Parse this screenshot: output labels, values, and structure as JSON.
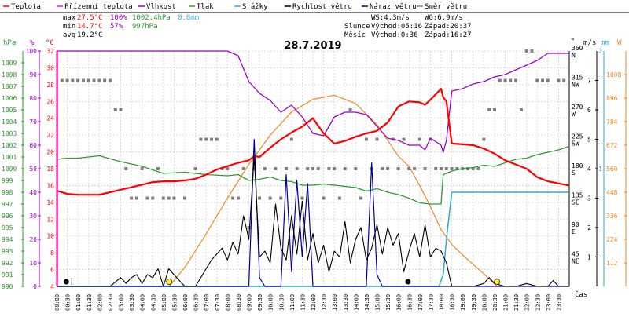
{
  "legend": [
    {
      "label": "Teplota",
      "color": "#ff0000"
    },
    {
      "label": "Přízemní teplota",
      "color": "#ff00ff"
    },
    {
      "label": "Vlhkost",
      "color": "#9900cc"
    },
    {
      "label": "Tlak",
      "color": "#339933"
    },
    {
      "label": "Srážky",
      "color": "#33aacc"
    },
    {
      "label": "Rychlost větru",
      "color": "#000000"
    },
    {
      "label": "Náraz větru",
      "color": "#000099"
    },
    {
      "label": "Směr větru",
      "color": "#808080"
    }
  ],
  "stats": {
    "max_label": "max",
    "max_temp": "27.5°C",
    "max_hum": "100%",
    "max_press": "1002.4hPa",
    "max_rain": "0.8mm",
    "min_label": "min",
    "min_temp": "14.7°C",
    "min_hum": "57%",
    "min_press": "997hPa",
    "avg_label": "avg",
    "avg_temp": "19.2°C"
  },
  "wind_info": {
    "ws": "WS:4.3m/s",
    "wg": "WG:6.9m/s",
    "sun_label": "Slunce",
    "sun_rise": "Východ:05:16",
    "sun_set": "Západ:20:37",
    "moon_label": "Měsíc",
    "moon_rise": "Východ:0:36",
    "moon_set": "Západ:16:27"
  },
  "date": "28.7.2019",
  "time_axis_label": "čas",
  "axis_units": {
    "press": "hPa",
    "hum": "%",
    "temp": "°C",
    "dir": "°",
    "wind": "m/s",
    "rain": "mm",
    "solar": "W"
  },
  "colors": {
    "temp": "#ff0000",
    "ground": "#ff00ff",
    "hum": "#9900cc",
    "press": "#339933",
    "rain": "#33aacc",
    "wind": "#000000",
    "gust": "#000099",
    "dir": "#808080",
    "solar": "#ee8822"
  },
  "chart_data": {
    "type": "line",
    "title": "28.7.2019",
    "xlabel": "čas",
    "x_tick_labels": [
      "00:00",
      "00:30",
      "01:00",
      "01:30",
      "02:00",
      "02:30",
      "03:00",
      "03:30",
      "04:00",
      "04:30",
      "05:00",
      "05:30",
      "06:00",
      "06:30",
      "07:00",
      "07:30",
      "08:00",
      "08:30",
      "09:00",
      "09:30",
      "10:00",
      "10:30",
      "11:00",
      "11:30",
      "12:00",
      "12:30",
      "13:00",
      "13:30",
      "14:00",
      "14:30",
      "15:00",
      "15:30",
      "16:00",
      "16:30",
      "17:00",
      "17:30",
      "18:00",
      "18:30",
      "19:00",
      "19:30",
      "20:00",
      "20:30",
      "21:00",
      "21:30",
      "22:00",
      "22:30",
      "23:00",
      "23:30"
    ],
    "axes": {
      "pressure": {
        "unit": "hPa",
        "range": [
          990,
          1010
        ],
        "ticks": [
          990,
          991,
          992,
          993,
          994,
          995,
          996,
          997,
          998,
          999,
          1000,
          1001,
          1002,
          1003,
          1004,
          1005,
          1006,
          1007,
          1008,
          1009
        ]
      },
      "humidity": {
        "unit": "%",
        "range": [
          0,
          100
        ],
        "ticks": [
          0,
          10,
          20,
          30,
          40,
          50,
          60,
          70,
          80,
          90,
          100
        ]
      },
      "temperature": {
        "unit": "°C",
        "range": [
          4,
          32
        ],
        "ticks": [
          4,
          6,
          8,
          10,
          12,
          14,
          16,
          18,
          20,
          22,
          24,
          26,
          28,
          30,
          32
        ]
      },
      "wind_direction": {
        "unit": "°",
        "range": [
          0,
          360
        ],
        "ticks": [
          {
            "deg": "45",
            "dir": "NE"
          },
          {
            "deg": "90",
            "dir": "E"
          },
          {
            "deg": "135",
            "dir": "SE"
          },
          {
            "deg": "180",
            "dir": "S"
          },
          {
            "deg": "225",
            "dir": "SW"
          },
          {
            "deg": "270",
            "dir": "W"
          },
          {
            "deg": "315",
            "dir": "NW"
          },
          {
            "deg": "360",
            "dir": "N"
          }
        ]
      },
      "wind_speed": {
        "unit": "m/s",
        "range": [
          0,
          8
        ],
        "ticks": [
          1,
          2,
          3,
          4,
          5,
          6,
          7
        ]
      },
      "rain": {
        "unit": "mm",
        "range": [
          0,
          2
        ],
        "ticks": [
          1,
          2
        ]
      },
      "solar": {
        "unit": "W",
        "range": [
          0,
          1120
        ],
        "ticks": [
          112,
          224,
          336,
          448,
          560,
          672,
          784,
          896,
          1008
        ]
      }
    },
    "series": [
      {
        "name": "Teplota",
        "axis": "temperature",
        "hours": [
          0,
          0.5,
          1,
          2,
          3,
          4,
          4.5,
          5,
          5.5,
          6,
          6.5,
          7,
          7.5,
          8,
          8.5,
          9,
          9.25,
          9.5,
          10,
          10.5,
          11,
          11.5,
          12,
          12.5,
          13,
          13.5,
          14,
          14.5,
          15,
          15.5,
          16,
          16.5,
          17,
          17.25,
          17.5,
          18,
          18.1,
          18.25,
          18.5,
          19,
          19.5,
          20,
          20.5,
          21,
          21.5,
          22,
          22.5,
          23,
          24
        ],
        "values": [
          15.4,
          15.0,
          14.9,
          14.9,
          15.5,
          16.1,
          16.4,
          16.5,
          16.5,
          16.6,
          16.8,
          17.3,
          17.9,
          18.3,
          18.7,
          19.0,
          19.5,
          19.4,
          20.5,
          21.5,
          22.3,
          23.0,
          24.0,
          22.2,
          21.0,
          21.3,
          21.8,
          22.2,
          22.5,
          23.5,
          25.4,
          26.0,
          25.9,
          25.6,
          26.2,
          27.5,
          26.5,
          26.0,
          21.0,
          20.9,
          20.8,
          20.4,
          19.8,
          19.0,
          18.5,
          18.0,
          17.0,
          16.5,
          16.0
        ]
      },
      {
        "name": "Vlhkost",
        "axis": "humidity",
        "hours": [
          0,
          1,
          2,
          3,
          4,
          5,
          6,
          7,
          8,
          8.5,
          9,
          9.5,
          10,
          10.5,
          11,
          11.5,
          12,
          12.5,
          13,
          13.5,
          14,
          14.5,
          15,
          15.5,
          16,
          16.5,
          17,
          17.25,
          17.5,
          18,
          18.1,
          18.25,
          18.5,
          19,
          19.5,
          20,
          20.5,
          21,
          21.5,
          22,
          22.5,
          23,
          24
        ],
        "values": [
          100,
          100,
          100,
          100,
          100,
          100,
          100,
          100,
          100,
          98,
          87,
          82,
          79,
          74,
          77,
          72,
          65,
          64,
          72,
          74,
          74,
          73,
          68,
          63,
          62,
          60,
          60,
          58,
          63,
          60,
          57,
          62,
          83,
          84,
          86,
          87,
          89,
          90,
          92,
          94,
          96,
          99,
          99
        ]
      },
      {
        "name": "Tlak",
        "axis": "pressure",
        "hours": [
          0,
          0.5,
          1,
          2,
          3,
          4,
          5,
          6,
          7,
          8,
          8.5,
          9,
          9.5,
          10,
          10.5,
          11,
          11.5,
          12,
          12.5,
          13,
          13.5,
          14,
          14.5,
          15,
          15.5,
          16,
          16.5,
          17,
          17.5,
          18,
          18.1,
          18.25,
          18.5,
          19,
          19.5,
          20,
          20.5,
          21,
          21.5,
          22,
          22.5,
          23,
          23.5,
          24
        ],
        "values": [
          1000.8,
          1000.9,
          1000.9,
          1001.1,
          1000.6,
          1000.2,
          999.6,
          999.7,
          999.5,
          999.4,
          999.5,
          999.0,
          999.1,
          999.3,
          999.0,
          998.9,
          998.6,
          998.6,
          998.7,
          998.6,
          998.5,
          998.4,
          998.1,
          998.3,
          998.0,
          997.8,
          997.5,
          997.1,
          997.0,
          997.0,
          999.5,
          999.6,
          999.8,
          1000.0,
          1000.1,
          1000.3,
          1000.2,
          1000.5,
          1000.8,
          1000.9,
          1001.2,
          1001.4,
          1001.6,
          1001.9
        ]
      },
      {
        "name": "Srážky",
        "axis": "rain",
        "hours": [
          0,
          17.9,
          18.1,
          18.25,
          18.5,
          19,
          24
        ],
        "values": [
          0,
          0,
          0.1,
          0.4,
          0.8,
          0.8,
          0.8
        ]
      },
      {
        "name": "Sluneční záření",
        "axis": "solar",
        "hours": [
          5.27,
          6,
          7,
          8,
          9,
          10,
          11,
          12,
          13,
          14,
          15,
          16,
          16.5,
          17,
          17.5,
          18,
          18.5,
          19,
          20,
          20.62
        ],
        "values": [
          0,
          90,
          250,
          420,
          580,
          720,
          830,
          890,
          910,
          870,
          770,
          620,
          570,
          480,
          380,
          270,
          200,
          150,
          60,
          0
        ]
      },
      {
        "name": "Rychlost větru",
        "axis": "wind_speed",
        "hours": [
          0,
          2.5,
          3,
          3.25,
          3.5,
          3.75,
          4,
          4.25,
          4.5,
          4.75,
          5,
          5.25,
          5.5,
          5.75,
          6,
          6.5,
          7,
          7.25,
          7.5,
          7.75,
          8,
          8.25,
          8.5,
          8.75,
          9,
          9.25,
          9.5,
          9.75,
          10,
          10.25,
          10.5,
          10.75,
          11,
          11.25,
          11.5,
          11.75,
          12,
          12.25,
          12.5,
          12.75,
          13,
          13.25,
          13.5,
          13.75,
          14,
          14.25,
          14.5,
          14.75,
          15,
          15.25,
          15.5,
          15.75,
          16,
          16.25,
          16.5,
          16.75,
          17,
          17.25,
          17.5,
          17.75,
          18,
          18.25,
          18.5,
          19,
          19.5,
          20,
          20.25,
          20.5,
          21,
          21.5,
          22,
          22.5,
          23,
          23.25,
          23.5,
          24
        ],
        "values": [
          0,
          0,
          0.3,
          0.1,
          0.3,
          0.4,
          0.1,
          0.4,
          0.3,
          0.6,
          0,
          0.6,
          0.4,
          0.2,
          0,
          0,
          0.6,
          0.9,
          1.1,
          1.3,
          0.9,
          1.5,
          1.1,
          2.4,
          1.6,
          4.4,
          1.0,
          1.2,
          0.8,
          2.8,
          1.3,
          0.9,
          2.4,
          1.1,
          2.9,
          0.9,
          1.8,
          0.8,
          1.4,
          0.5,
          1.2,
          1.0,
          2.2,
          0.8,
          1.6,
          2.0,
          0.9,
          1.3,
          2.1,
          1.1,
          2.0,
          1.4,
          1.8,
          0.5,
          1.2,
          1.8,
          1.0,
          2.1,
          1.0,
          1.3,
          1.2,
          0.8,
          0,
          0,
          0,
          0.1,
          0.3,
          0.1,
          0,
          0,
          0.1,
          0,
          0,
          0.2,
          0,
          0
        ]
      },
      {
        "name": "Náraz větru",
        "axis": "wind_speed",
        "hours": [
          0,
          9,
          9.25,
          9.5,
          9.75,
          10.5,
          10.75,
          11.0,
          11.25,
          11.5,
          11.75,
          12,
          12.5,
          13,
          13.5,
          14,
          14.5,
          14.75,
          15,
          15.25,
          16,
          18,
          24
        ],
        "values": [
          0,
          0,
          5.0,
          0.3,
          0,
          0,
          3.8,
          0.5,
          3.6,
          1.0,
          3.5,
          0,
          0,
          0,
          0,
          0,
          0,
          4.2,
          0.4,
          0,
          0,
          0,
          0
        ]
      }
    ],
    "wind_direction_points": [
      {
        "hour": 0.25,
        "deg": 315
      },
      {
        "hour": 0.5,
        "deg": 315
      },
      {
        "hour": 0.75,
        "deg": 315
      },
      {
        "hour": 1.0,
        "deg": 315
      },
      {
        "hour": 1.25,
        "deg": 315
      },
      {
        "hour": 1.5,
        "deg": 315
      },
      {
        "hour": 1.75,
        "deg": 315
      },
      {
        "hour": 2.0,
        "deg": 315
      },
      {
        "hour": 2.25,
        "deg": 315
      },
      {
        "hour": 2.5,
        "deg": 315
      },
      {
        "hour": 2.75,
        "deg": 270
      },
      {
        "hour": 3.0,
        "deg": 270
      },
      {
        "hour": 3.25,
        "deg": 180
      },
      {
        "hour": 3.5,
        "deg": 135
      },
      {
        "hour": 3.75,
        "deg": 135
      },
      {
        "hour": 4.0,
        "deg": 180
      },
      {
        "hour": 4.25,
        "deg": 135
      },
      {
        "hour": 4.5,
        "deg": 135
      },
      {
        "hour": 4.75,
        "deg": 180
      },
      {
        "hour": 5.0,
        "deg": 135
      },
      {
        "hour": 5.25,
        "deg": 135
      },
      {
        "hour": 5.5,
        "deg": 135
      },
      {
        "hour": 6.0,
        "deg": 135
      },
      {
        "hour": 6.5,
        "deg": 180
      },
      {
        "hour": 6.75,
        "deg": 225
      },
      {
        "hour": 7.0,
        "deg": 225
      },
      {
        "hour": 7.25,
        "deg": 225
      },
      {
        "hour": 7.5,
        "deg": 225
      },
      {
        "hour": 7.75,
        "deg": 180
      },
      {
        "hour": 8.0,
        "deg": 180
      },
      {
        "hour": 8.25,
        "deg": 135
      },
      {
        "hour": 8.5,
        "deg": 135
      },
      {
        "hour": 8.75,
        "deg": 180
      },
      {
        "hour": 9.0,
        "deg": 90
      },
      {
        "hour": 9.25,
        "deg": 180
      },
      {
        "hour": 9.5,
        "deg": 135
      },
      {
        "hour": 9.75,
        "deg": 180
      },
      {
        "hour": 10.0,
        "deg": 135
      },
      {
        "hour": 10.25,
        "deg": 180
      },
      {
        "hour": 10.5,
        "deg": 135
      },
      {
        "hour": 10.75,
        "deg": 180
      },
      {
        "hour": 11.0,
        "deg": 225
      },
      {
        "hour": 11.25,
        "deg": 180
      },
      {
        "hour": 11.5,
        "deg": 135
      },
      {
        "hour": 11.75,
        "deg": 180
      },
      {
        "hour": 12.0,
        "deg": 180
      },
      {
        "hour": 12.25,
        "deg": 180
      },
      {
        "hour": 12.5,
        "deg": 135
      },
      {
        "hour": 12.75,
        "deg": 180
      },
      {
        "hour": 13.0,
        "deg": 180
      },
      {
        "hour": 13.25,
        "deg": 135
      },
      {
        "hour": 13.5,
        "deg": 180
      },
      {
        "hour": 13.75,
        "deg": 270
      },
      {
        "hour": 14.0,
        "deg": 180
      },
      {
        "hour": 14.25,
        "deg": 135
      },
      {
        "hour": 14.5,
        "deg": 225
      },
      {
        "hour": 14.75,
        "deg": 180
      },
      {
        "hour": 15.0,
        "deg": 225
      },
      {
        "hour": 15.25,
        "deg": 180
      },
      {
        "hour": 15.5,
        "deg": 180
      },
      {
        "hour": 15.75,
        "deg": 225
      },
      {
        "hour": 16.0,
        "deg": 180
      },
      {
        "hour": 16.25,
        "deg": 225
      },
      {
        "hour": 16.5,
        "deg": 180
      },
      {
        "hour": 16.75,
        "deg": 180
      },
      {
        "hour": 17.0,
        "deg": 225
      },
      {
        "hour": 17.25,
        "deg": 180
      },
      {
        "hour": 17.5,
        "deg": 225
      },
      {
        "hour": 17.75,
        "deg": 180
      },
      {
        "hour": 18.0,
        "deg": 180
      },
      {
        "hour": 18.25,
        "deg": 180
      },
      {
        "hour": 18.5,
        "deg": 180
      },
      {
        "hour": 18.75,
        "deg": 180
      },
      {
        "hour": 19.0,
        "deg": 180
      },
      {
        "hour": 19.25,
        "deg": 180
      },
      {
        "hour": 19.5,
        "deg": 180
      },
      {
        "hour": 19.75,
        "deg": 180
      },
      {
        "hour": 20.0,
        "deg": 225
      },
      {
        "hour": 20.25,
        "deg": 270
      },
      {
        "hour": 20.5,
        "deg": 270
      },
      {
        "hour": 20.75,
        "deg": 315
      },
      {
        "hour": 21.0,
        "deg": 315
      },
      {
        "hour": 21.25,
        "deg": 315
      },
      {
        "hour": 21.5,
        "deg": 315
      },
      {
        "hour": 21.75,
        "deg": 270
      },
      {
        "hour": 22.0,
        "deg": 360
      },
      {
        "hour": 22.25,
        "deg": 360
      },
      {
        "hour": 22.5,
        "deg": 315
      },
      {
        "hour": 22.75,
        "deg": 315
      },
      {
        "hour": 23.0,
        "deg": 315
      },
      {
        "hour": 23.5,
        "deg": 315
      },
      {
        "hour": 23.75,
        "deg": 315
      }
    ],
    "moon_hour": 0.6,
    "moon_set_hour": 16.45,
    "sun_rise_hour": 5.27,
    "sun_set_hour": 20.62
  }
}
